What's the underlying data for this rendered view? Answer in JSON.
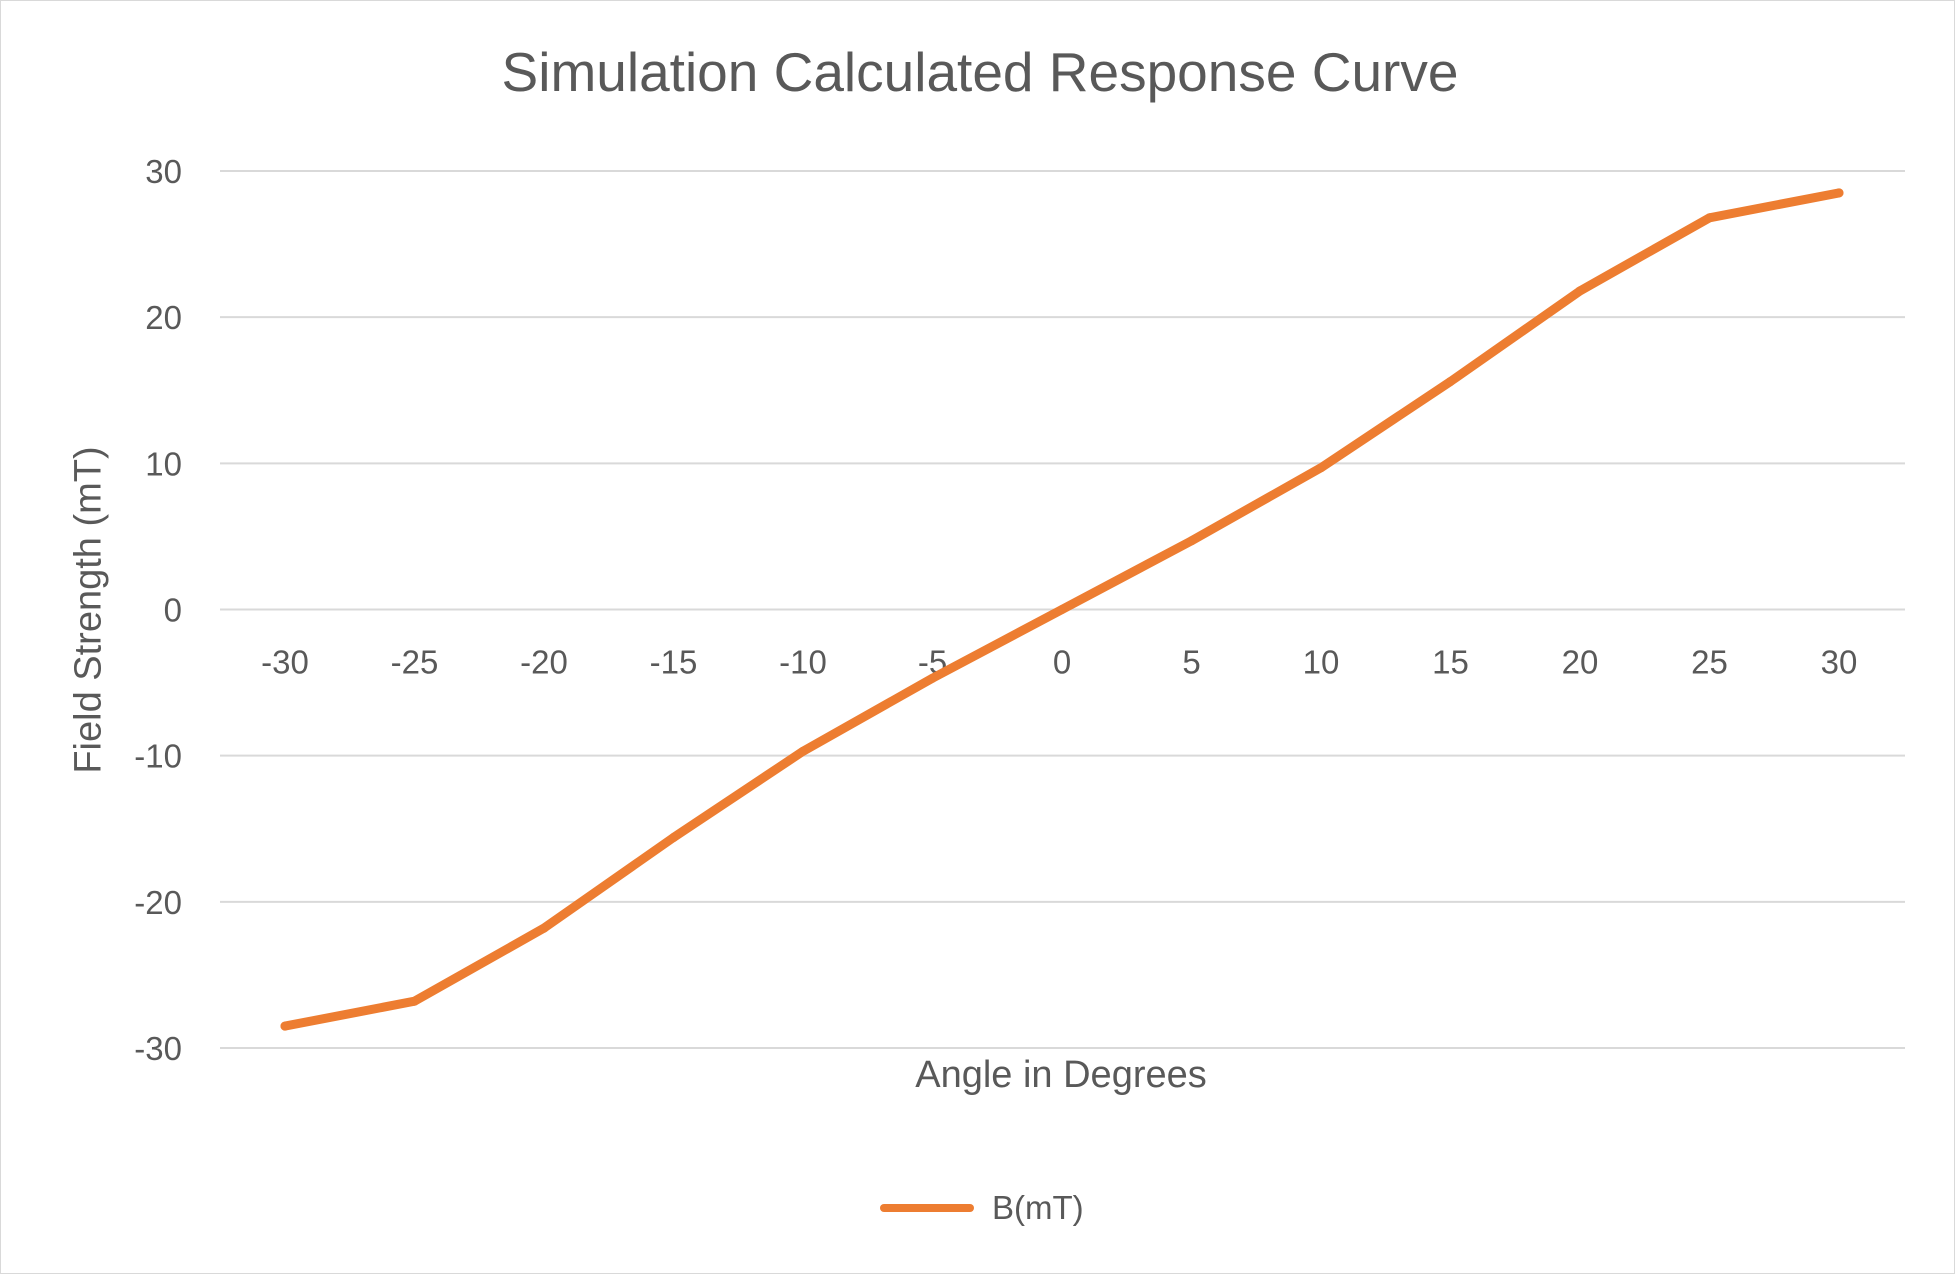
{
  "chart_data": {
    "type": "line",
    "title": "Simulation Calculated Response Curve",
    "xlabel": "Angle in Degrees",
    "ylabel": "Field Strength (mT)",
    "categories": [
      "-30",
      "-25",
      "-20",
      "-15",
      "-10",
      "-5",
      "0",
      "5",
      "10",
      "15",
      "20",
      "25",
      "30"
    ],
    "series": [
      {
        "name": "B(mT)",
        "color": "#ED7D31",
        "values": [
          -28.5,
          -26.8,
          -21.8,
          -15.6,
          -9.7,
          -4.7,
          0,
          4.7,
          9.7,
          15.6,
          21.8,
          26.8,
          28.5
        ]
      }
    ],
    "y_ticks": [
      "30",
      "20",
      "10",
      "0",
      "-10",
      "-20",
      "-30"
    ],
    "ylim": [
      -30,
      30
    ],
    "grid": true,
    "gridline_color": "#d9d9d9",
    "legend_position": "bottom",
    "x_labels_position": "at zero line"
  }
}
